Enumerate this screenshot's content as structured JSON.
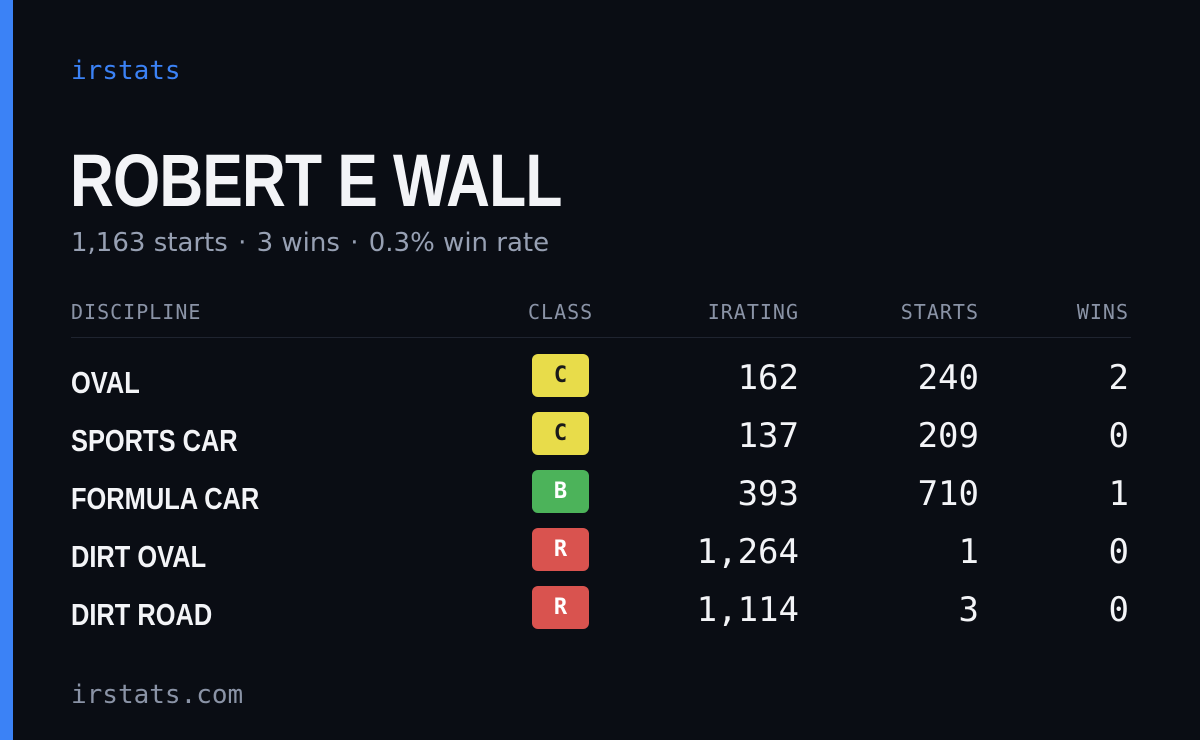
{
  "brand": "irstats",
  "driver": {
    "name": "ROBERT E WALL",
    "starts": "1,163 starts",
    "wins": "3 wins",
    "win_rate": "0.3% win rate",
    "separator": "·"
  },
  "table": {
    "headers": {
      "discipline": "DISCIPLINE",
      "class": "CLASS",
      "irating": "IRATING",
      "starts": "STARTS",
      "wins": "WINS"
    },
    "rows": [
      {
        "discipline": "OVAL",
        "class": "C",
        "irating": "162",
        "starts": "240",
        "wins": "2"
      },
      {
        "discipline": "SPORTS CAR",
        "class": "C",
        "irating": "137",
        "starts": "209",
        "wins": "0"
      },
      {
        "discipline": "FORMULA CAR",
        "class": "B",
        "irating": "393",
        "starts": "710",
        "wins": "1"
      },
      {
        "discipline": "DIRT OVAL",
        "class": "R",
        "irating": "1,264",
        "starts": "1",
        "wins": "0"
      },
      {
        "discipline": "DIRT ROAD",
        "class": "R",
        "irating": "1,114",
        "starts": "3",
        "wins": "0"
      }
    ]
  },
  "class_colors": {
    "C": {
      "bg": "#e8dc4a",
      "fg": "#1a1a1a"
    },
    "B": {
      "bg": "#4cb35a",
      "fg": "#ffffff"
    },
    "R": {
      "bg": "#d9534f",
      "fg": "#ffffff"
    }
  },
  "accent_color": "#3b82f6",
  "footer": "irstats.com"
}
